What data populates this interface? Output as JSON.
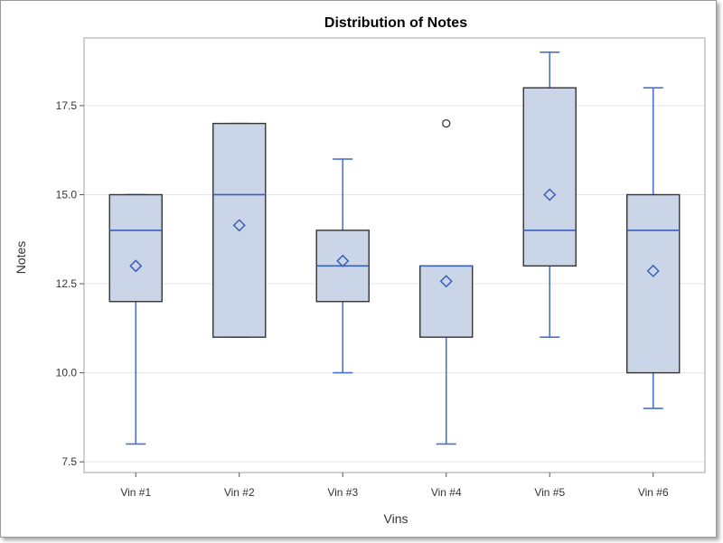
{
  "chart_data": {
    "type": "box",
    "title": "Distribution of Notes",
    "xlabel": "Vins",
    "ylabel": "Notes",
    "ylim": [
      7.2,
      19.4
    ],
    "yticks": [
      7.5,
      10.0,
      12.5,
      15.0,
      17.5
    ],
    "ytick_labels": [
      "7.5",
      "10.0",
      "12.5",
      "15.0",
      "17.5"
    ],
    "grid": true,
    "colors": {
      "box_fill": "#cad6e8",
      "box_edge": "#333333",
      "median": "#3a5fb8",
      "whisker": "#4a72c8",
      "mean_marker": "#3a5fb8",
      "outlier": "#333333",
      "grid": "#e6e6e6"
    },
    "categories": [
      "Vin #1",
      "Vin #2",
      "Vin #3",
      "Vin #4",
      "Vin #5",
      "Vin #6"
    ],
    "boxes": [
      {
        "q1": 12,
        "median": 14,
        "q3": 15,
        "whisker_low": 8,
        "whisker_high": 15,
        "mean": 13.0,
        "outliers": []
      },
      {
        "q1": 11,
        "median": 15,
        "q3": 17,
        "whisker_low": 11,
        "whisker_high": 17,
        "mean": 14.14,
        "outliers": []
      },
      {
        "q1": 12,
        "median": 13,
        "q3": 14,
        "whisker_low": 10,
        "whisker_high": 16,
        "mean": 13.14,
        "outliers": []
      },
      {
        "q1": 11,
        "median": 13,
        "q3": 13,
        "whisker_low": 8,
        "whisker_high": 13,
        "mean": 12.57,
        "outliers": [
          17
        ]
      },
      {
        "q1": 13,
        "median": 14,
        "q3": 18,
        "whisker_low": 11,
        "whisker_high": 19,
        "mean": 15.0,
        "outliers": []
      },
      {
        "q1": 10,
        "median": 14,
        "q3": 15,
        "whisker_low": 9,
        "whisker_high": 18,
        "mean": 12.86,
        "outliers": []
      }
    ]
  }
}
